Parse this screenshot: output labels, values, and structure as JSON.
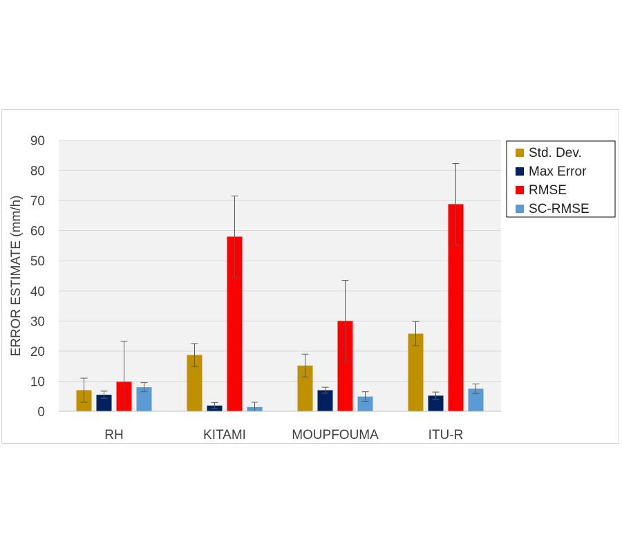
{
  "chart_data": {
    "type": "bar",
    "categories": [
      "RH",
      "KITAMI",
      "MOUPFOUMA",
      "ITU-R"
    ],
    "ylabel": "ERROR ESTIMATE (mm/h)",
    "xlabel": "",
    "ylim": [
      0,
      90
    ],
    "yticks": [
      0,
      10,
      20,
      30,
      40,
      50,
      60,
      70,
      80,
      90
    ],
    "grid": true,
    "legend_position": "right",
    "series": [
      {
        "name": "Std. Dev.",
        "color": "#bf9000",
        "values": [
          7,
          18.7,
          15.2,
          25.8
        ],
        "error": [
          4,
          3.8,
          3.8,
          4
        ]
      },
      {
        "name": "Max Error",
        "color": "#002060",
        "values": [
          5.5,
          1.9,
          7,
          5.2
        ],
        "error": [
          1.2,
          1.0,
          1.0,
          1.2
        ]
      },
      {
        "name": "RMSE",
        "color": "#ff0000",
        "values": [
          9.8,
          58,
          30,
          68.8
        ],
        "error": [
          13.5,
          13.5,
          13.5,
          13.5
        ]
      },
      {
        "name": "SC-RMSE",
        "color": "#5b9bd5",
        "values": [
          8,
          1.4,
          4.9,
          7.5
        ],
        "error": [
          1.5,
          1.6,
          1.6,
          1.6
        ]
      }
    ]
  }
}
